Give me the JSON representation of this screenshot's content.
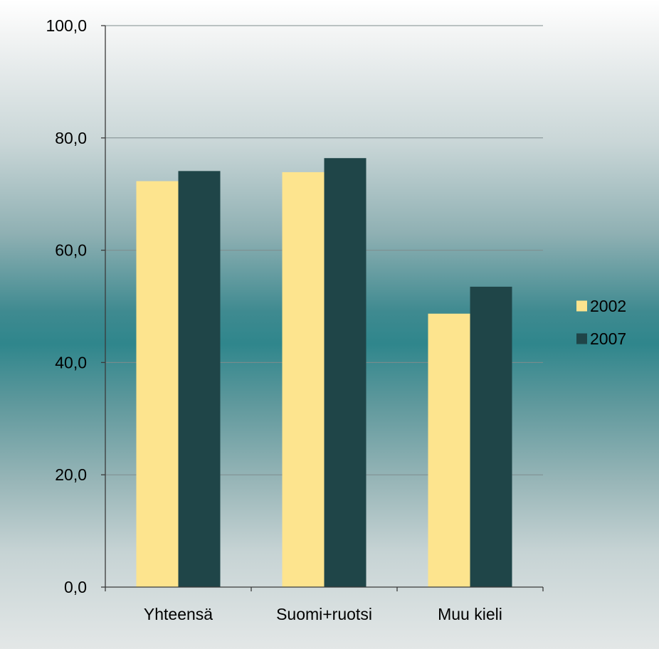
{
  "chart_data": {
    "type": "bar",
    "categories": [
      "Yhteensä",
      "Suomi+ruotsi",
      "Muu kieli"
    ],
    "series": [
      {
        "name": "2002",
        "values": [
          72.3,
          73.9,
          48.7
        ],
        "color": "#fde48e"
      },
      {
        "name": "2007",
        "values": [
          74.1,
          76.4,
          53.5
        ],
        "color": "#1f4548"
      }
    ],
    "y_ticks": [
      "0,0",
      "20,0",
      "40,0",
      "60,0",
      "80,0",
      "100,0"
    ],
    "ylim": [
      0,
      100
    ],
    "grid": true,
    "legend_position": "right"
  }
}
